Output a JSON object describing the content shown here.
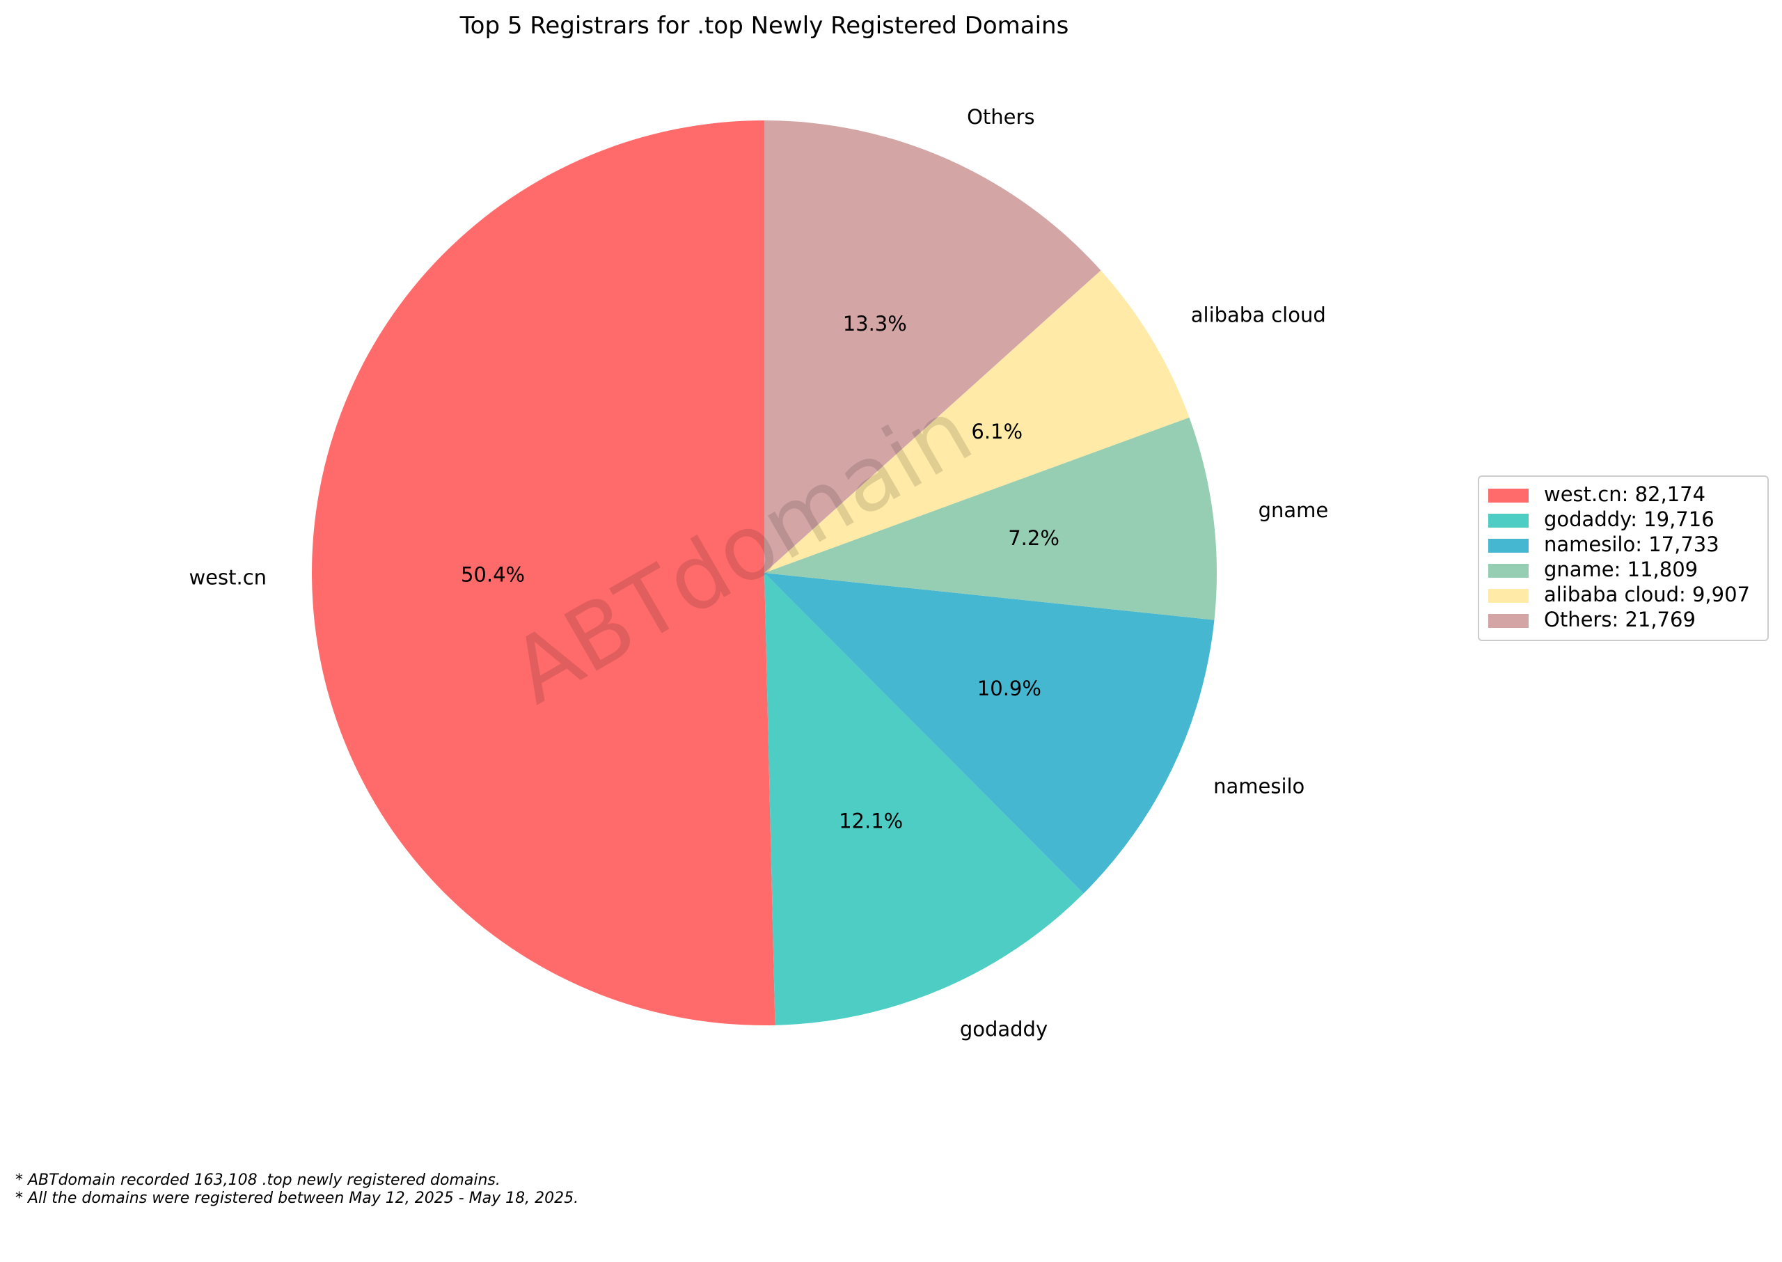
{
  "chart_data": {
    "type": "pie",
    "title": "Top 5 Registrars for .top Newly Registered Domains",
    "slices": [
      {
        "label": "west.cn",
        "value": 82174,
        "value_label": "82,174",
        "percent_label": "50.4%",
        "color": "#FF6B6B"
      },
      {
        "label": "godaddy",
        "value": 19716,
        "value_label": "19,716",
        "percent_label": "12.1%",
        "color": "#4ECDC4"
      },
      {
        "label": "namesilo",
        "value": 17733,
        "value_label": "17,733",
        "percent_label": "10.9%",
        "color": "#45B7D1"
      },
      {
        "label": "gname",
        "value": 11809,
        "value_label": "11,809",
        "percent_label": "7.2%",
        "color": "#96CEB4"
      },
      {
        "label": "alibaba cloud",
        "value": 9907,
        "value_label": "9,907",
        "percent_label": "6.1%",
        "color": "#FFEAA7"
      },
      {
        "label": "Others",
        "value": 21769,
        "value_label": "21,769",
        "percent_label": "13.3%",
        "color": "#D4A5A5"
      }
    ],
    "start_angle_deg": 90,
    "direction": "counterclockwise",
    "legend_position": "right",
    "watermark": "ABTdomain"
  },
  "footnotes": [
    "* ABTdomain recorded 163,108 .top newly registered domains.",
    "* All the domains were registered between May 12, 2025 - May 18, 2025."
  ]
}
